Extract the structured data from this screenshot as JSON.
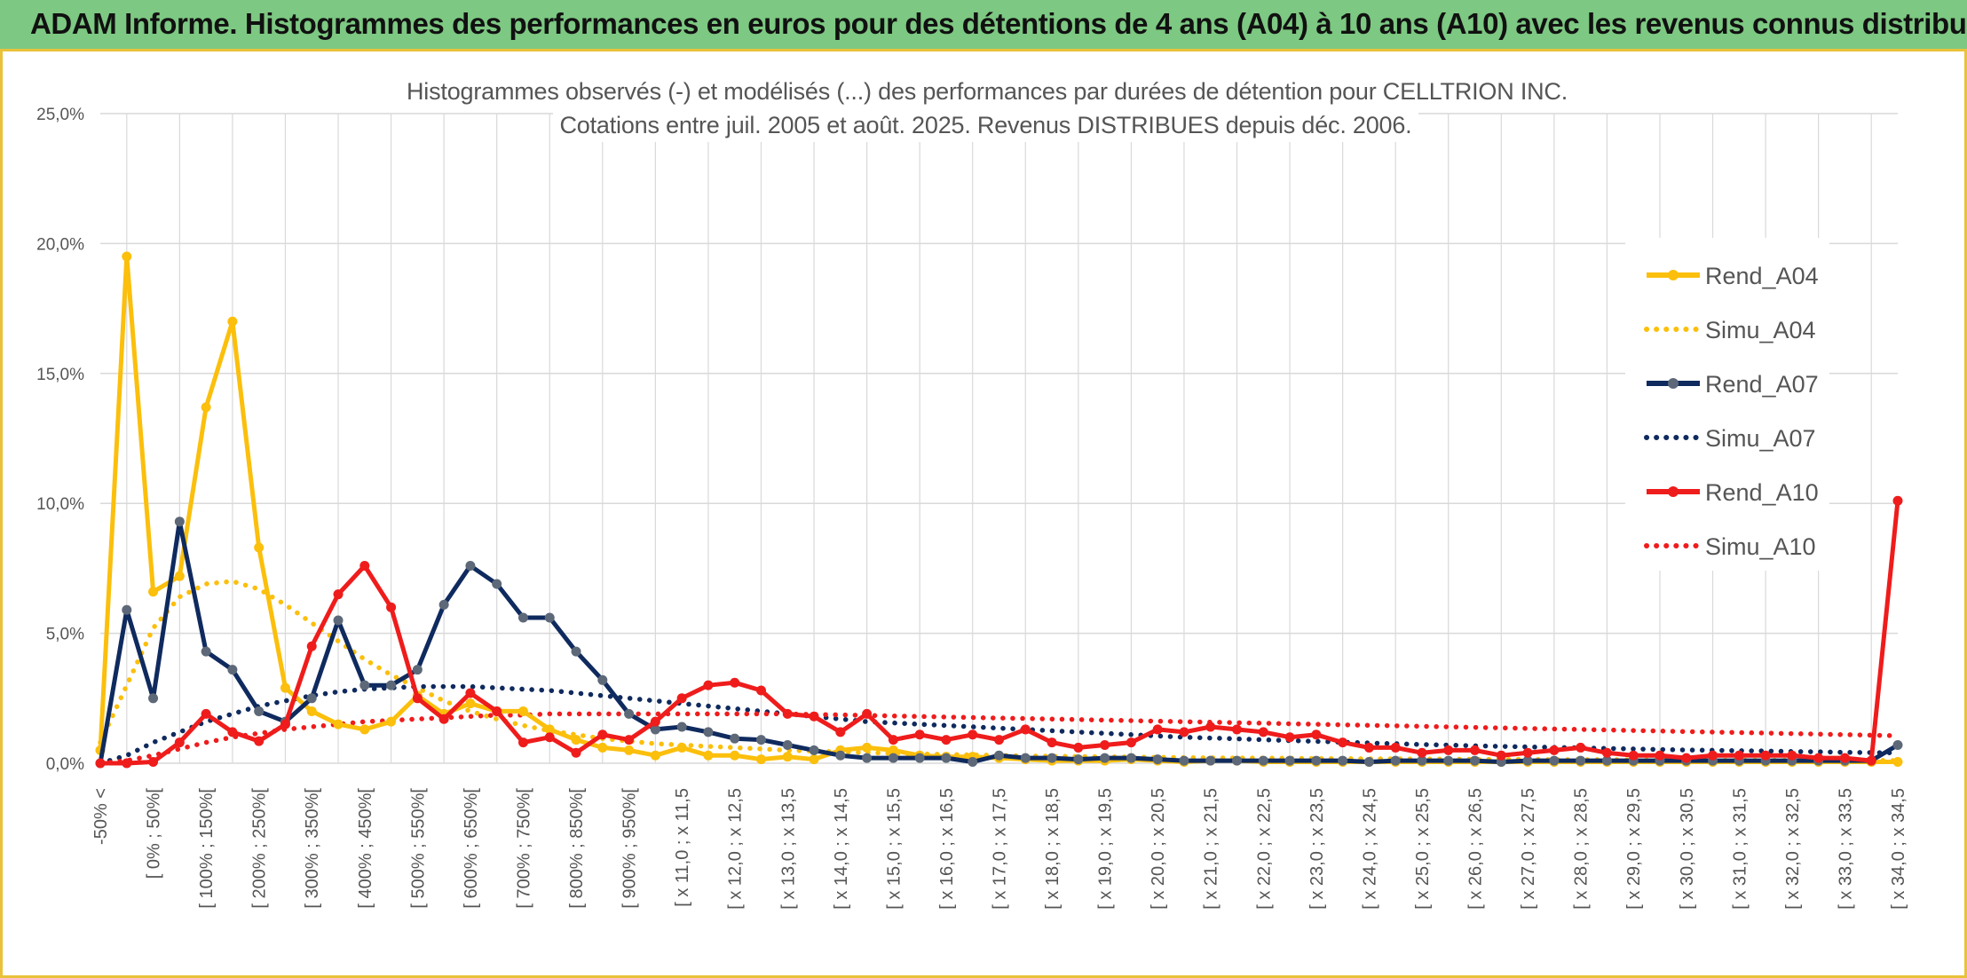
{
  "banner": {
    "title": "ADAM Informe. Histogrammes des performances en euros pour des détentions de 4 ans (A04) à 10 ans (A10) avec les revenus connus distribués"
  },
  "colors": {
    "banner_bg": "#7dc882",
    "frame_border": "#e9c23a",
    "A04": "#fbbf0c",
    "A07": "#0f2a5e",
    "A07_marker": "#5d6878",
    "A10": "#ef1c1c",
    "grid": "#d9d9d9"
  },
  "chart_data": {
    "type": "line",
    "title_line1": "Histogrammes observés (-) et modélisés (...) des performances par durées de détention pour CELLTRION INC.",
    "title_line2": "Cotations entre juil. 2005 et août. 2025. Revenus DISTRIBUES depuis déc. 2006.",
    "xlabel": "",
    "ylabel": "",
    "ylim": [
      0,
      25
    ],
    "yticks": [
      "0,0%",
      "5,0%",
      "10,0%",
      "15,0%",
      "20,0%",
      "25,0%"
    ],
    "grid": true,
    "legend_position": "right",
    "categories_count": 69,
    "x_tick_labels": [
      "-50% <",
      "[ 0% ; 50%[",
      "[ 100% ; 150%[",
      "[ 200% ; 250%[",
      "[ 300% ; 350%[",
      "[ 400% ; 450%[",
      "[ 500% ; 550%[",
      "[ 600% ; 650%[",
      "[ 700% ; 750%[",
      "[ 800% ; 850%[",
      "[ 900% ; 950%[",
      "[ x 11,0 ; x 11,5",
      "[ x 12,0 ; x 12,5",
      "[ x 13,0 ; x 13,5",
      "[ x 14,0 ; x 14,5",
      "[ x 15,0 ; x 15,5",
      "[ x 16,0 ; x 16,5",
      "[ x 17,0 ; x 17,5",
      "[ x 18,0 ; x 18,5",
      "[ x 19,0 ; x 19,5",
      "[ x 20,0 ; x 20,5",
      "[ x 21,0 ; x 21,5",
      "[ x 22,0 ; x 22,5",
      "[ x 23,0 ; x 23,5",
      "[ x 24,0 ; x 24,5",
      "[ x 25,0 ; x 25,5",
      "[ x 26,0 ; x 26,5",
      "[ x 27,0 ; x 27,5",
      "[ x 28,0 ; x 28,5",
      "[ x 29,0 ; x 29,5",
      "[ x 30,0 ; x 30,5",
      "[ x 31,0 ; x 31,5",
      "[ x 32,0 ; x 32,5",
      "[ x 33,0 ; x 33,5",
      "[ x 34,0 ; x 34,5"
    ],
    "series": [
      {
        "name": "Rend_A04",
        "style": "solid",
        "color": "#fbbf0c",
        "markers": true,
        "values": [
          0.5,
          19.5,
          6.6,
          7.2,
          13.7,
          17.0,
          8.3,
          2.9,
          2.0,
          1.5,
          1.3,
          1.6,
          2.6,
          1.9,
          2.3,
          2.0,
          2.0,
          1.3,
          0.9,
          0.6,
          0.5,
          0.3,
          0.6,
          0.3,
          0.3,
          0.15,
          0.25,
          0.15,
          0.5,
          0.6,
          0.5,
          0.3,
          0.25,
          0.25,
          0.2,
          0.15,
          0.1,
          0.1,
          0.1,
          0.15,
          0.1,
          0.05,
          0.1,
          0.1,
          0.05,
          0.05,
          0.05,
          0.05,
          0.05,
          0.05,
          0.05,
          0.05,
          0.05,
          0.05,
          0.05,
          0.05,
          0.05,
          0.05,
          0.05,
          0.05,
          0.05,
          0.05,
          0.05,
          0.05,
          0.05,
          0.05,
          0.05,
          0.05,
          0.05
        ]
      },
      {
        "name": "Simu_A04",
        "style": "dotted",
        "color": "#fbbf0c",
        "markers": false,
        "values": [
          0.8,
          3.0,
          5.2,
          6.4,
          6.9,
          7.0,
          6.7,
          6.1,
          5.4,
          4.7,
          4.0,
          3.4,
          2.9,
          2.4,
          2.0,
          1.7,
          1.45,
          1.25,
          1.1,
          0.95,
          0.85,
          0.75,
          0.7,
          0.65,
          0.6,
          0.55,
          0.5,
          0.47,
          0.44,
          0.41,
          0.38,
          0.36,
          0.34,
          0.32,
          0.3,
          0.28,
          0.27,
          0.26,
          0.25,
          0.24,
          0.23,
          0.22,
          0.21,
          0.2,
          0.2,
          0.19,
          0.18,
          0.18,
          0.17,
          0.17,
          0.16,
          0.16,
          0.15,
          0.15,
          0.15,
          0.14,
          0.14,
          0.14,
          0.13,
          0.13,
          0.13,
          0.12,
          0.12,
          0.12,
          0.12,
          0.11,
          0.11,
          0.11,
          0.1
        ]
      },
      {
        "name": "Rend_A07",
        "style": "solid",
        "color": "#0f2a5e",
        "markers": true,
        "values": [
          0.0,
          5.9,
          2.5,
          9.3,
          4.3,
          3.6,
          2.0,
          1.6,
          2.5,
          5.5,
          3.0,
          3.0,
          3.6,
          6.1,
          7.6,
          6.9,
          5.6,
          5.6,
          4.3,
          3.2,
          1.9,
          1.3,
          1.4,
          1.2,
          0.95,
          0.9,
          0.7,
          0.5,
          0.3,
          0.2,
          0.2,
          0.2,
          0.2,
          0.05,
          0.3,
          0.2,
          0.2,
          0.15,
          0.2,
          0.2,
          0.15,
          0.1,
          0.1,
          0.1,
          0.1,
          0.1,
          0.1,
          0.1,
          0.05,
          0.1,
          0.1,
          0.1,
          0.1,
          0.05,
          0.1,
          0.1,
          0.1,
          0.1,
          0.1,
          0.1,
          0.1,
          0.1,
          0.1,
          0.1,
          0.1,
          0.1,
          0.1,
          0.1,
          0.7
        ]
      },
      {
        "name": "Simu_A07",
        "style": "dotted",
        "color": "#0f2a5e",
        "markers": false,
        "values": [
          0.0,
          0.3,
          0.8,
          1.2,
          1.6,
          1.9,
          2.2,
          2.4,
          2.6,
          2.75,
          2.85,
          2.9,
          2.95,
          2.95,
          2.95,
          2.9,
          2.85,
          2.8,
          2.7,
          2.6,
          2.5,
          2.4,
          2.3,
          2.2,
          2.1,
          2.0,
          1.9,
          1.8,
          1.7,
          1.6,
          1.55,
          1.5,
          1.45,
          1.4,
          1.35,
          1.3,
          1.25,
          1.2,
          1.15,
          1.1,
          1.05,
          1.0,
          0.97,
          0.94,
          0.9,
          0.87,
          0.84,
          0.81,
          0.78,
          0.75,
          0.72,
          0.7,
          0.67,
          0.65,
          0.63,
          0.61,
          0.59,
          0.57,
          0.55,
          0.53,
          0.51,
          0.5,
          0.48,
          0.47,
          0.45,
          0.44,
          0.42,
          0.41,
          0.4
        ]
      },
      {
        "name": "Rend_A10",
        "style": "solid",
        "color": "#ef1c1c",
        "markers": true,
        "values": [
          0.0,
          0.0,
          0.05,
          0.8,
          1.9,
          1.2,
          0.85,
          1.5,
          4.5,
          6.5,
          7.6,
          6.0,
          2.5,
          1.7,
          2.7,
          2.0,
          0.8,
          1.0,
          0.4,
          1.1,
          0.9,
          1.6,
          2.5,
          3.0,
          3.1,
          2.8,
          1.9,
          1.8,
          1.2,
          1.9,
          0.9,
          1.1,
          0.9,
          1.1,
          0.9,
          1.3,
          0.8,
          0.6,
          0.7,
          0.8,
          1.3,
          1.2,
          1.4,
          1.3,
          1.2,
          1.0,
          1.1,
          0.8,
          0.6,
          0.6,
          0.4,
          0.5,
          0.5,
          0.3,
          0.4,
          0.5,
          0.6,
          0.4,
          0.3,
          0.3,
          0.2,
          0.3,
          0.3,
          0.3,
          0.3,
          0.2,
          0.2,
          0.1,
          10.1
        ]
      },
      {
        "name": "Simu_A10",
        "style": "dotted",
        "color": "#ef1c1c",
        "markers": false,
        "values": [
          0.0,
          0.1,
          0.3,
          0.55,
          0.8,
          1.0,
          1.15,
          1.3,
          1.4,
          1.5,
          1.6,
          1.65,
          1.7,
          1.75,
          1.8,
          1.85,
          1.85,
          1.9,
          1.9,
          1.9,
          1.9,
          1.9,
          1.9,
          1.9,
          1.9,
          1.9,
          1.9,
          1.88,
          1.86,
          1.84,
          1.82,
          1.8,
          1.78,
          1.76,
          1.74,
          1.72,
          1.7,
          1.68,
          1.66,
          1.64,
          1.62,
          1.6,
          1.58,
          1.56,
          1.54,
          1.52,
          1.5,
          1.48,
          1.46,
          1.44,
          1.42,
          1.4,
          1.38,
          1.36,
          1.34,
          1.32,
          1.3,
          1.28,
          1.26,
          1.24,
          1.22,
          1.2,
          1.18,
          1.16,
          1.14,
          1.12,
          1.1,
          1.08,
          1.06
        ]
      }
    ]
  }
}
